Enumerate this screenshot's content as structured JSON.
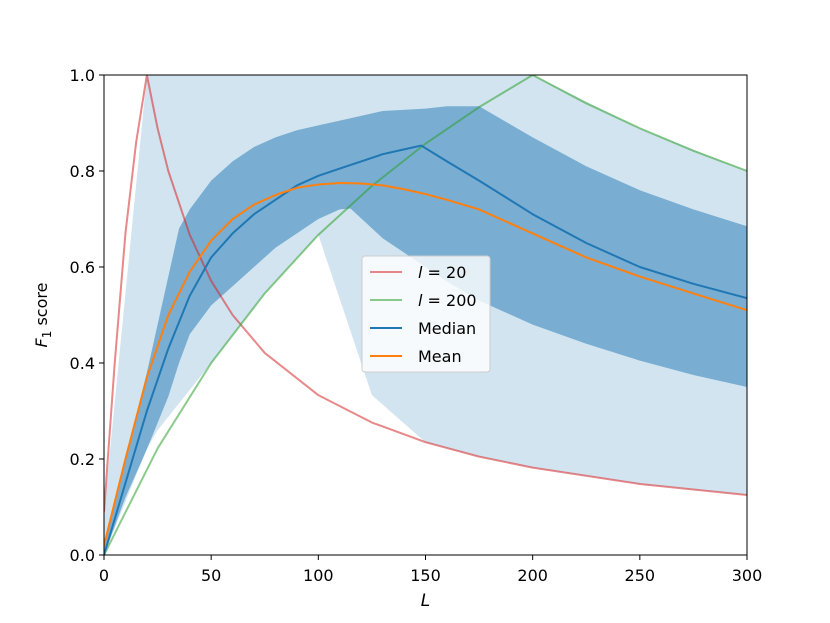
{
  "chart_data": {
    "type": "line",
    "xlabel": "L",
    "ylabel_main": "F",
    "ylabel_sub": "1",
    "ylabel_rest": " score",
    "xlim": [
      0,
      300
    ],
    "ylim": [
      0,
      1
    ],
    "xticks": [
      "0",
      "50",
      "100",
      "150",
      "200",
      "250",
      "300"
    ],
    "yticks": [
      "0.0",
      "0.2",
      "0.4",
      "0.6",
      "0.8",
      "1.0"
    ],
    "grid": false,
    "legend_position": "center",
    "legend": [
      {
        "key": "l20",
        "prefix": "l",
        "suffix": " = 20",
        "color": "#d62728"
      },
      {
        "key": "l200",
        "prefix": "l",
        "suffix": " = 200",
        "color": "#2ca02c"
      },
      {
        "key": "median",
        "prefix": "",
        "suffix": "Median",
        "color": "#1f77b4"
      },
      {
        "key": "mean",
        "prefix": "",
        "suffix": "Mean",
        "color": "#ff7f0e"
      }
    ],
    "series": [
      {
        "key": "l20",
        "name": "l = 20",
        "color": "#d62728",
        "x": [
          0,
          5,
          10,
          15,
          20,
          25,
          30,
          40,
          50,
          60,
          75,
          100,
          125,
          150,
          175,
          200,
          250,
          300
        ],
        "y": [
          0.09,
          0.4,
          0.67,
          0.86,
          1.0,
          0.889,
          0.8,
          0.667,
          0.571,
          0.5,
          0.421,
          0.333,
          0.276,
          0.235,
          0.205,
          0.182,
          0.148,
          0.125
        ]
      },
      {
        "key": "l200",
        "name": "l = 200",
        "color": "#2ca02c",
        "x": [
          0,
          25,
          50,
          75,
          100,
          125,
          150,
          175,
          200,
          225,
          250,
          275,
          300
        ],
        "y": [
          0.0,
          0.222,
          0.4,
          0.545,
          0.667,
          0.769,
          0.857,
          0.933,
          1.0,
          0.941,
          0.889,
          0.842,
          0.8
        ]
      },
      {
        "key": "median",
        "name": "Median",
        "color": "#1f77b4",
        "x": [
          0,
          10,
          20,
          30,
          40,
          50,
          60,
          70,
          80,
          90,
          100,
          110,
          120,
          130,
          140,
          148,
          160,
          175,
          200,
          225,
          250,
          275,
          300
        ],
        "y": [
          0.0,
          0.15,
          0.3,
          0.43,
          0.54,
          0.62,
          0.67,
          0.71,
          0.74,
          0.77,
          0.79,
          0.805,
          0.82,
          0.835,
          0.845,
          0.853,
          0.82,
          0.78,
          0.71,
          0.65,
          0.6,
          0.565,
          0.535
        ]
      },
      {
        "key": "mean",
        "name": "Mean",
        "color": "#ff7f0e",
        "x": [
          0,
          10,
          20,
          30,
          40,
          50,
          60,
          70,
          80,
          90,
          100,
          110,
          120,
          130,
          140,
          150,
          160,
          175,
          200,
          225,
          250,
          275,
          300
        ],
        "y": [
          0.02,
          0.2,
          0.37,
          0.5,
          0.59,
          0.655,
          0.7,
          0.73,
          0.75,
          0.765,
          0.772,
          0.775,
          0.774,
          0.77,
          0.762,
          0.752,
          0.74,
          0.72,
          0.67,
          0.62,
          0.58,
          0.545,
          0.51
        ]
      }
    ],
    "bands": [
      {
        "key": "outer_band",
        "color": "#1f77b4",
        "opacity": 0.2,
        "x": [
          0,
          20,
          25,
          50,
          75,
          100,
          125,
          150,
          175,
          200,
          250,
          300
        ],
        "lower": [
          0.0,
          0.222,
          0.26,
          0.4,
          0.545,
          0.667,
          0.333,
          0.235,
          0.205,
          0.182,
          0.148,
          0.125
        ],
        "upper": [
          0.09,
          1.0,
          1.0,
          1.0,
          1.0,
          1.0,
          1.0,
          1.0,
          1.0,
          1.0,
          0.889,
          0.8
        ]
      },
      {
        "key": "inner_band",
        "color": "#1f77b4",
        "opacity": 0.5,
        "x": [
          0,
          10,
          20,
          30,
          35,
          40,
          50,
          60,
          70,
          80,
          90,
          100,
          110,
          115,
          130,
          150,
          160,
          175,
          200,
          225,
          250,
          275,
          300
        ],
        "lower": [
          0.0,
          0.12,
          0.22,
          0.33,
          0.4,
          0.46,
          0.52,
          0.56,
          0.6,
          0.64,
          0.67,
          0.7,
          0.72,
          0.722,
          0.66,
          0.6,
          0.57,
          0.53,
          0.48,
          0.44,
          0.405,
          0.375,
          0.35
        ],
        "upper": [
          0.02,
          0.2,
          0.38,
          0.58,
          0.68,
          0.72,
          0.78,
          0.82,
          0.85,
          0.87,
          0.885,
          0.895,
          0.905,
          0.91,
          0.925,
          0.93,
          0.935,
          0.935,
          0.87,
          0.81,
          0.76,
          0.72,
          0.685
        ]
      }
    ]
  }
}
